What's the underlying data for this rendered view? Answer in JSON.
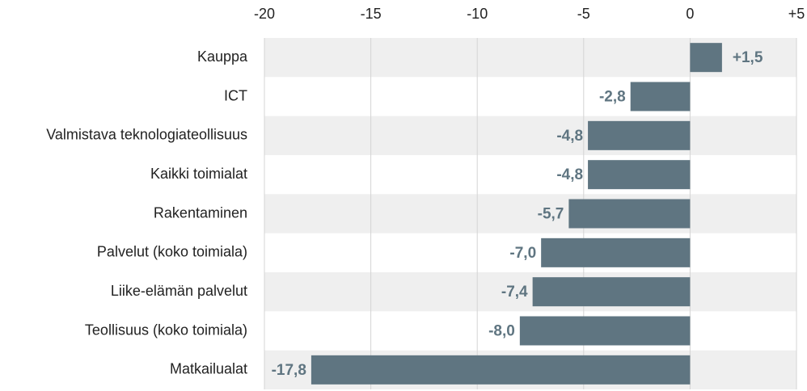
{
  "chart_data": {
    "type": "bar",
    "orientation": "horizontal",
    "categories": [
      "Kauppa",
      "ICT",
      "Valmistava teknologiateollisuus",
      "Kaikki toimialat",
      "Rakentaminen",
      "Palvelut (koko toimiala)",
      "Liike-elämän palvelut",
      "Teollisuus (koko toimiala)",
      "Matkailualat"
    ],
    "values": [
      1.5,
      -2.8,
      -4.8,
      -4.8,
      -5.7,
      -7.0,
      -7.4,
      -8.0,
      -17.8
    ],
    "value_labels": [
      "+1,5",
      "-2,8",
      "-4,8",
      "-4,8",
      "-5,7",
      "-7,0",
      "-7,4",
      "-8,0",
      "-17,8"
    ],
    "color": "#5f7581",
    "xlim": [
      -20,
      5
    ],
    "xticks": [
      -20,
      -15,
      -10,
      -5,
      0,
      {
        "value": 5,
        "label": "+5"
      }
    ],
    "grid": true
  }
}
